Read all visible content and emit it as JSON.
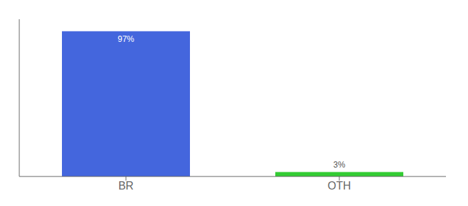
{
  "chart_data": {
    "type": "bar",
    "categories": [
      "BR",
      "OTH"
    ],
    "values": [
      97,
      3
    ],
    "value_labels": [
      "97%",
      "3%"
    ],
    "colors": [
      "#4466DD",
      "#33CC33"
    ],
    "ylim": [
      0,
      105
    ],
    "grid": false,
    "data_labels": true,
    "tick_labels": "x"
  }
}
